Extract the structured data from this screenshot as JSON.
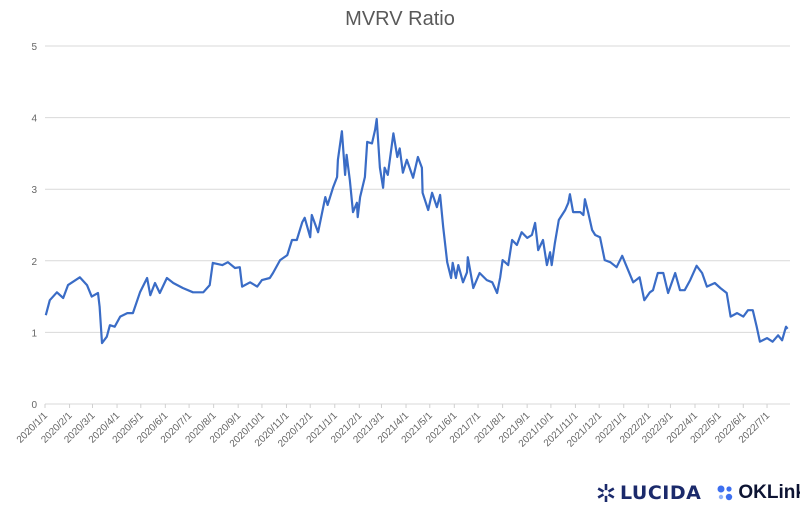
{
  "chart_data": {
    "type": "line",
    "title": "MVRV Ratio",
    "xlabel": "",
    "ylabel": "",
    "ylim": [
      0,
      5
    ],
    "yticks": [
      "0",
      "1",
      "2",
      "3",
      "4",
      "5"
    ],
    "xlim": [
      "2020-01-01",
      "2022-07-30"
    ],
    "xticks": [
      "2020/1/1",
      "2020/2/1",
      "2020/3/1",
      "2020/4/1",
      "2020/5/1",
      "2020/6/1",
      "2020/7/1",
      "2020/8/1",
      "2020/9/1",
      "2020/10/1",
      "2020/11/1",
      "2020/12/1",
      "2021/1/1",
      "2021/2/1",
      "2021/3/1",
      "2021/4/1",
      "2021/5/1",
      "2021/6/1",
      "2021/7/1",
      "2021/8/1",
      "2021/9/1",
      "2021/10/1",
      "2021/11/1",
      "2021/12/1",
      "2022/1/1",
      "2022/2/1",
      "2022/3/1",
      "2022/4/1",
      "2022/5/1",
      "2022/6/1",
      "2022/7/1"
    ],
    "grid": "horizontal",
    "legend": "none",
    "line_color": "#3a6cc6",
    "series": [
      {
        "points": [
          [
            "2020-01-02",
            1.24
          ],
          [
            "2020-01-07",
            1.45
          ],
          [
            "2020-01-16",
            1.56
          ],
          [
            "2020-01-24",
            1.48
          ],
          [
            "2020-01-30",
            1.66
          ],
          [
            "2020-02-14",
            1.77
          ],
          [
            "2020-02-23",
            1.66
          ],
          [
            "2020-02-29",
            1.5
          ],
          [
            "2020-03-08",
            1.55
          ],
          [
            "2020-03-10",
            1.36
          ],
          [
            "2020-03-13",
            0.85
          ],
          [
            "2020-03-19",
            0.94
          ],
          [
            "2020-03-23",
            1.1
          ],
          [
            "2020-03-29",
            1.08
          ],
          [
            "2020-04-05",
            1.22
          ],
          [
            "2020-04-14",
            1.27
          ],
          [
            "2020-04-21",
            1.27
          ],
          [
            "2020-04-30",
            1.56
          ],
          [
            "2020-05-09",
            1.76
          ],
          [
            "2020-05-13",
            1.52
          ],
          [
            "2020-05-19",
            1.69
          ],
          [
            "2020-05-25",
            1.55
          ],
          [
            "2020-06-03",
            1.76
          ],
          [
            "2020-06-11",
            1.69
          ],
          [
            "2020-06-23",
            1.62
          ],
          [
            "2020-07-06",
            1.56
          ],
          [
            "2020-07-19",
            1.56
          ],
          [
            "2020-07-27",
            1.66
          ],
          [
            "2020-07-31",
            1.97
          ],
          [
            "2020-08-12",
            1.94
          ],
          [
            "2020-08-19",
            1.98
          ],
          [
            "2020-08-28",
            1.9
          ],
          [
            "2020-09-03",
            1.91
          ],
          [
            "2020-09-06",
            1.64
          ],
          [
            "2020-09-16",
            1.7
          ],
          [
            "2020-09-25",
            1.64
          ],
          [
            "2020-10-01",
            1.73
          ],
          [
            "2020-10-11",
            1.76
          ],
          [
            "2020-10-15",
            1.83
          ],
          [
            "2020-10-24",
            2.01
          ],
          [
            "2020-11-02",
            2.08
          ],
          [
            "2020-11-08",
            2.29
          ],
          [
            "2020-11-14",
            2.29
          ],
          [
            "2020-11-21",
            2.54
          ],
          [
            "2020-11-24",
            2.6
          ],
          [
            "2020-12-01",
            2.33
          ],
          [
            "2020-12-03",
            2.64
          ],
          [
            "2020-12-11",
            2.4
          ],
          [
            "2020-12-20",
            2.89
          ],
          [
            "2020-12-23",
            2.78
          ],
          [
            "2020-12-30",
            3.03
          ],
          [
            "2021-01-04",
            3.17
          ],
          [
            "2021-01-05",
            3.41
          ],
          [
            "2021-01-10",
            3.81
          ],
          [
            "2021-01-14",
            3.2
          ],
          [
            "2021-01-16",
            3.48
          ],
          [
            "2021-01-20",
            3.13
          ],
          [
            "2021-01-24",
            2.68
          ],
          [
            "2021-01-29",
            2.81
          ],
          [
            "2021-01-30",
            2.61
          ],
          [
            "2021-02-02",
            2.89
          ],
          [
            "2021-02-08",
            3.17
          ],
          [
            "2021-02-11",
            3.66
          ],
          [
            "2021-02-17",
            3.64
          ],
          [
            "2021-02-21",
            3.83
          ],
          [
            "2021-02-23",
            3.98
          ],
          [
            "2021-02-27",
            3.3
          ],
          [
            "2021-03-03",
            3.02
          ],
          [
            "2021-03-05",
            3.3
          ],
          [
            "2021-03-09",
            3.2
          ],
          [
            "2021-03-16",
            3.78
          ],
          [
            "2021-03-21",
            3.45
          ],
          [
            "2021-03-24",
            3.57
          ],
          [
            "2021-03-28",
            3.23
          ],
          [
            "2021-04-02",
            3.41
          ],
          [
            "2021-04-10",
            3.16
          ],
          [
            "2021-04-16",
            3.45
          ],
          [
            "2021-04-21",
            3.3
          ],
          [
            "2021-04-22",
            2.95
          ],
          [
            "2021-04-29",
            2.71
          ],
          [
            "2021-05-04",
            2.95
          ],
          [
            "2021-05-10",
            2.75
          ],
          [
            "2021-05-14",
            2.92
          ],
          [
            "2021-05-18",
            2.47
          ],
          [
            "2021-05-23",
            1.98
          ],
          [
            "2021-05-28",
            1.76
          ],
          [
            "2021-05-30",
            1.97
          ],
          [
            "2021-06-03",
            1.76
          ],
          [
            "2021-06-06",
            1.94
          ],
          [
            "2021-06-12",
            1.7
          ],
          [
            "2021-06-17",
            1.84
          ],
          [
            "2021-06-18",
            2.05
          ],
          [
            "2021-06-25",
            1.62
          ],
          [
            "2021-07-03",
            1.83
          ],
          [
            "2021-07-12",
            1.73
          ],
          [
            "2021-07-19",
            1.7
          ],
          [
            "2021-07-25",
            1.55
          ],
          [
            "2021-07-29",
            1.77
          ],
          [
            "2021-08-01",
            2.01
          ],
          [
            "2021-08-08",
            1.94
          ],
          [
            "2021-08-13",
            2.29
          ],
          [
            "2021-08-19",
            2.22
          ],
          [
            "2021-08-25",
            2.4
          ],
          [
            "2021-09-01",
            2.32
          ],
          [
            "2021-09-07",
            2.36
          ],
          [
            "2021-09-11",
            2.53
          ],
          [
            "2021-09-15",
            2.15
          ],
          [
            "2021-09-21",
            2.29
          ],
          [
            "2021-09-26",
            1.94
          ],
          [
            "2021-09-30",
            2.12
          ],
          [
            "2021-10-02",
            1.94
          ],
          [
            "2021-10-06",
            2.25
          ],
          [
            "2021-10-11",
            2.57
          ],
          [
            "2021-10-19",
            2.71
          ],
          [
            "2021-10-23",
            2.81
          ],
          [
            "2021-10-25",
            2.93
          ],
          [
            "2021-10-29",
            2.68
          ],
          [
            "2021-11-07",
            2.68
          ],
          [
            "2021-11-11",
            2.64
          ],
          [
            "2021-11-13",
            2.86
          ],
          [
            "2021-11-17",
            2.68
          ],
          [
            "2021-11-22",
            2.43
          ],
          [
            "2021-11-26",
            2.36
          ],
          [
            "2021-12-02",
            2.33
          ],
          [
            "2021-12-08",
            2.01
          ],
          [
            "2021-12-15",
            1.98
          ],
          [
            "2021-12-23",
            1.91
          ],
          [
            "2021-12-30",
            2.07
          ],
          [
            "2022-01-05",
            1.91
          ],
          [
            "2022-01-13",
            1.7
          ],
          [
            "2022-01-21",
            1.77
          ],
          [
            "2022-01-27",
            1.45
          ],
          [
            "2022-02-03",
            1.56
          ],
          [
            "2022-02-07",
            1.59
          ],
          [
            "2022-02-13",
            1.83
          ],
          [
            "2022-02-20",
            1.83
          ],
          [
            "2022-02-26",
            1.55
          ],
          [
            "2022-03-07",
            1.83
          ],
          [
            "2022-03-13",
            1.59
          ],
          [
            "2022-03-19",
            1.59
          ],
          [
            "2022-03-26",
            1.73
          ],
          [
            "2022-04-03",
            1.93
          ],
          [
            "2022-04-10",
            1.83
          ],
          [
            "2022-04-16",
            1.64
          ],
          [
            "2022-04-26",
            1.69
          ],
          [
            "2022-05-03",
            1.62
          ],
          [
            "2022-05-11",
            1.55
          ],
          [
            "2022-05-16",
            1.22
          ],
          [
            "2022-05-24",
            1.27
          ],
          [
            "2022-06-01",
            1.22
          ],
          [
            "2022-06-07",
            1.31
          ],
          [
            "2022-06-13",
            1.31
          ],
          [
            "2022-06-18",
            1.08
          ],
          [
            "2022-06-22",
            0.87
          ],
          [
            "2022-07-01",
            0.92
          ],
          [
            "2022-07-08",
            0.87
          ],
          [
            "2022-07-15",
            0.96
          ],
          [
            "2022-07-20",
            0.89
          ],
          [
            "2022-07-25",
            1.08
          ],
          [
            "2022-07-27",
            1.05
          ]
        ]
      }
    ]
  },
  "logos": {
    "lucida": "LUCIDA",
    "oklink": "OKLink",
    "lucida_color": "#1b2a6b",
    "oklink_dot_color": "#3d6ff0"
  }
}
